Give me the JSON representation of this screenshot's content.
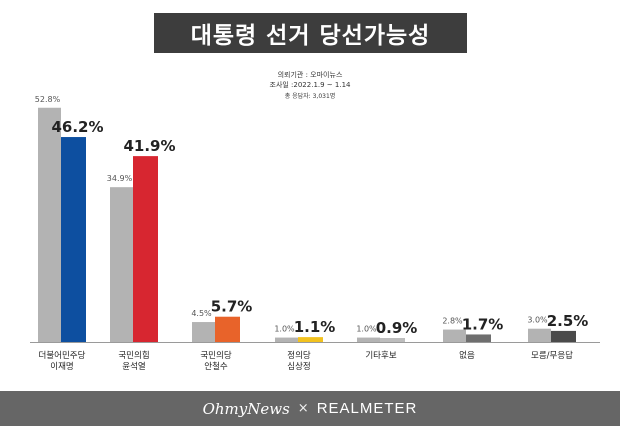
{
  "title": "대통령 선거 당선가능성",
  "meta": {
    "line1": "의뢰기관 : 오마이뉴스",
    "line2": "조사일 :2022.1.9 ~ 1.14",
    "line3": "총 응답자: 3,031명"
  },
  "footer": {
    "brand_left": "OhmyNews",
    "separator": "×",
    "brand_right": "REALMETER"
  },
  "colors": {
    "previous": "#b3b3b3",
    "lee": "#0d4fa0",
    "yoon": "#d72630",
    "ahn": "#e8632a",
    "sim": "#f2c21e",
    "other": "#bdbdbd",
    "none": "#6e6e6e",
    "dontknow": "#4a4a4a"
  },
  "chart_data": {
    "type": "bar",
    "categories": [
      [
        "더불어민주당",
        "이재명"
      ],
      [
        "국민의힘",
        "윤석열"
      ],
      [
        "국민의당",
        "안철수"
      ],
      [
        "정의당",
        "심상정"
      ],
      [
        "기타후보"
      ],
      [
        "없음"
      ],
      [
        "모름/무응답"
      ]
    ],
    "series": [
      {
        "values": [
          52.8,
          34.9,
          4.5,
          1.0,
          1.0,
          2.8,
          3.0
        ],
        "labels": [
          "52.8%",
          "34.9%",
          "4.5%",
          "1.0%",
          "1.0%",
          "2.8%",
          "3.0%"
        ]
      },
      {
        "values": [
          46.2,
          41.9,
          5.7,
          1.1,
          0.9,
          1.7,
          2.5
        ],
        "labels": [
          "46.2%",
          "41.9%",
          "5.7%",
          "1.1%",
          "0.9%",
          "1.7%",
          "2.5%"
        ]
      }
    ],
    "current_colors": [
      "lee",
      "yoon",
      "ahn",
      "sim",
      "other",
      "none",
      "dontknow"
    ],
    "ylim": [
      0,
      55
    ]
  }
}
